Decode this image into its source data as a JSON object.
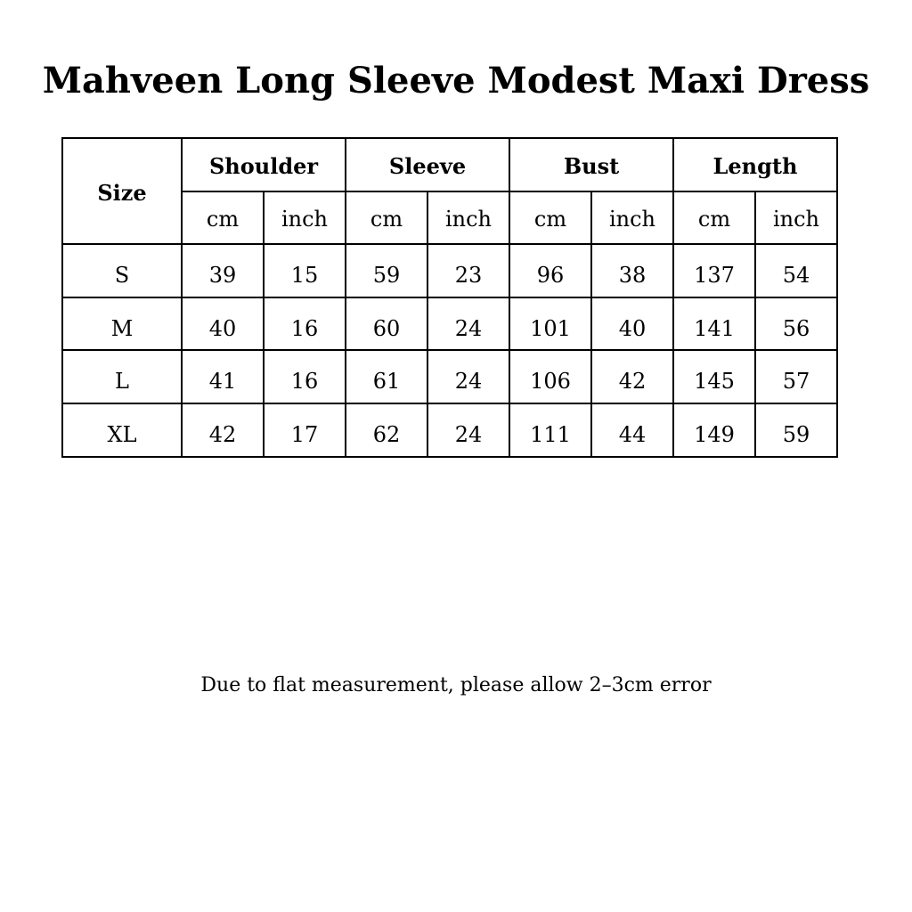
{
  "title": "Mahveen Long Sleeve Modest Maxi Dress",
  "table": {
    "size_header": "Size",
    "groups": [
      "Shoulder",
      "Sleeve",
      "Bust",
      "Length"
    ],
    "units": [
      "cm",
      "inch",
      "cm",
      "inch",
      "cm",
      "inch",
      "cm",
      "inch"
    ],
    "rows": [
      {
        "size": "S",
        "values": [
          "39",
          "15",
          "59",
          "23",
          "96",
          "38",
          "137",
          "54"
        ]
      },
      {
        "size": "M",
        "values": [
          "40",
          "16",
          "60",
          "24",
          "101",
          "40",
          "141",
          "56"
        ]
      },
      {
        "size": "L",
        "values": [
          "41",
          "16",
          "61",
          "24",
          "106",
          "42",
          "145",
          "57"
        ]
      },
      {
        "size": "XL",
        "values": [
          "42",
          "17",
          "62",
          "24",
          "111",
          "44",
          "149",
          "59"
        ]
      }
    ]
  },
  "note": "Due to flat measurement, please allow 2–3cm error"
}
